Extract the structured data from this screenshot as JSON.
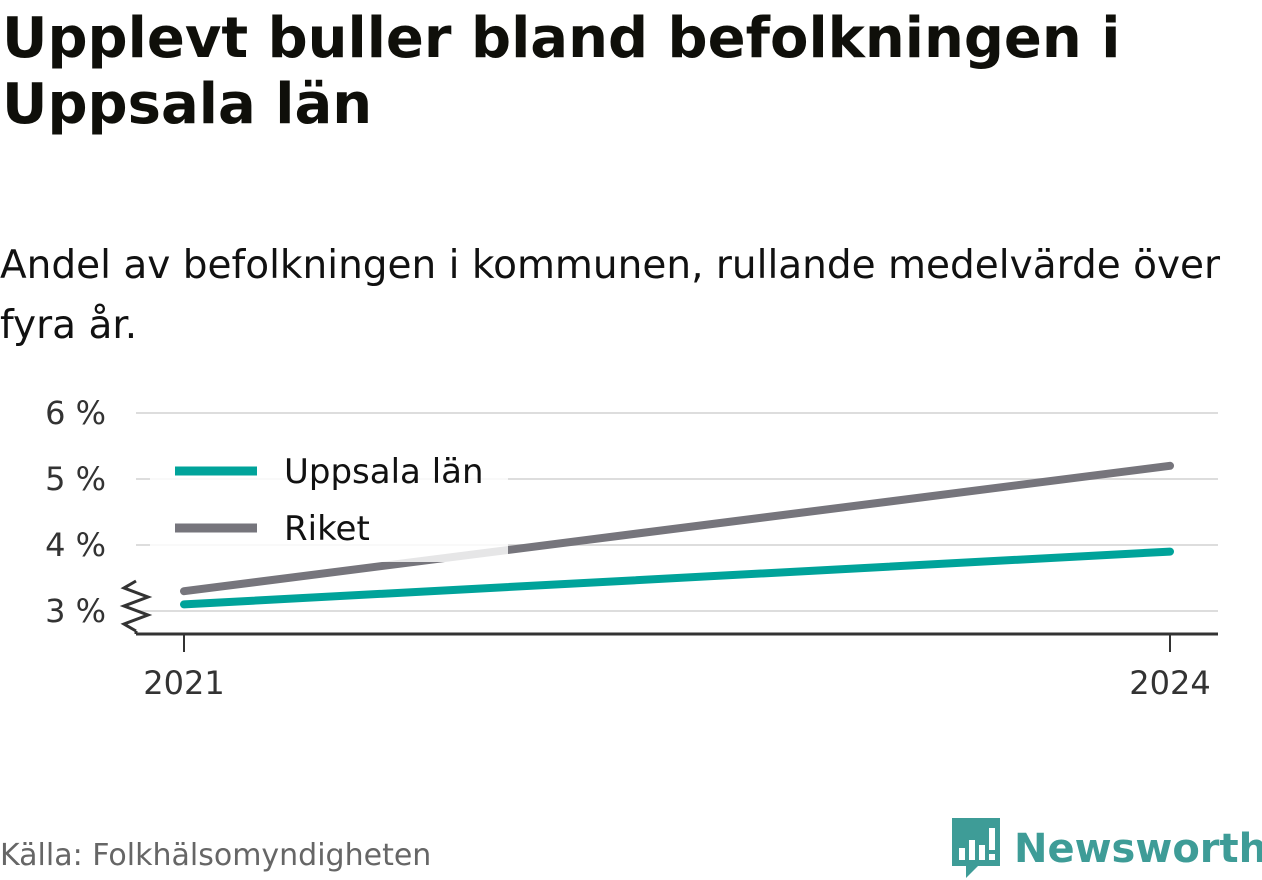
{
  "title": "Upplevt buller bland befolkningen i Uppsala län",
  "subtitle": "Andel av befolkningen i kommunen, rullande medelvärde över fyra år.",
  "source": "Källa: Folkhälsomyndigheten",
  "brand": {
    "name": "Newsworthy",
    "color": "#3e9c97",
    "icon": "bar-chart-speech-bubble-icon"
  },
  "chart_data": {
    "type": "line",
    "x": [
      2021,
      2024
    ],
    "x_tick_labels": [
      "2021",
      "2024"
    ],
    "y_ticks": [
      3,
      4,
      5,
      6
    ],
    "y_tick_labels": [
      "3 %",
      "4 %",
      "5 %",
      "6 %"
    ],
    "ylim": [
      3,
      6
    ],
    "y_axis_break": true,
    "grid": true,
    "legend_position": "top-left",
    "series": [
      {
        "name": "Uppsala län",
        "values": [
          3.1,
          3.9
        ],
        "color": "#00a39a"
      },
      {
        "name": "Riket",
        "values": [
          3.3,
          5.2
        ],
        "color": "#76757c"
      }
    ]
  }
}
